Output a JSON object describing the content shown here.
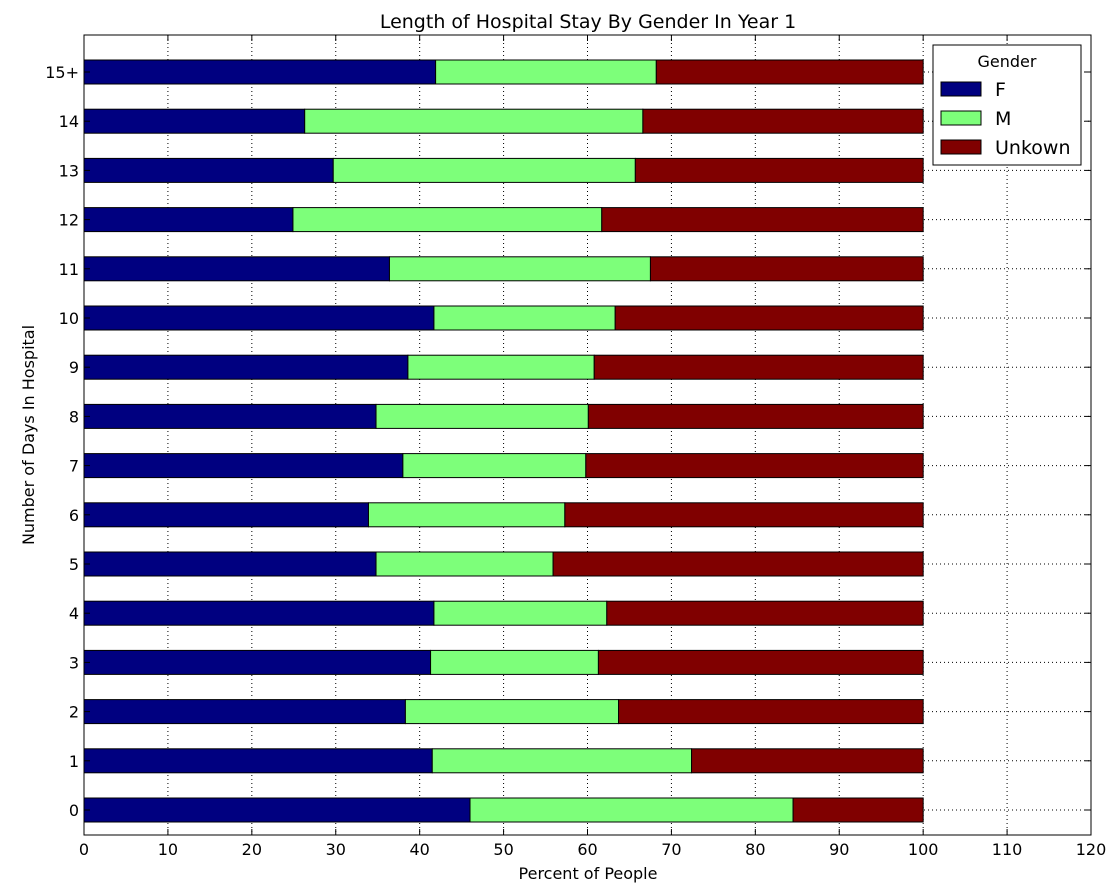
{
  "chart_data": {
    "type": "bar",
    "orientation": "horizontal",
    "stacked": true,
    "title": "Length of Hospital Stay By Gender In Year 1",
    "xlabel": "Percent of People",
    "ylabel": "Number of Days In Hospital",
    "xlim": [
      0,
      120
    ],
    "xticks": [
      "0",
      "10",
      "20",
      "30",
      "40",
      "50",
      "60",
      "70",
      "80",
      "90",
      "100",
      "110",
      "120"
    ],
    "categories": [
      "0",
      "1",
      "2",
      "3",
      "4",
      "5",
      "6",
      "7",
      "8",
      "9",
      "10",
      "11",
      "12",
      "13",
      "14",
      "15+"
    ],
    "grid": true,
    "legend": {
      "title": "Gender",
      "placement": "top-right"
    },
    "series": [
      {
        "name": "F",
        "color": "#000080",
        "values": [
          46.0,
          41.5,
          38.3,
          41.3,
          41.7,
          34.8,
          33.9,
          38.0,
          34.8,
          38.6,
          41.7,
          36.4,
          24.9,
          29.7,
          26.3,
          41.9
        ]
      },
      {
        "name": "M",
        "color": "#7dff7a",
        "values": [
          38.5,
          30.9,
          25.4,
          20.0,
          20.6,
          21.1,
          23.4,
          21.8,
          25.3,
          22.2,
          21.6,
          31.1,
          36.8,
          36.0,
          40.3,
          26.3
        ]
      },
      {
        "name": "Unkown",
        "color": "#800000",
        "values": [
          15.5,
          27.6,
          36.3,
          38.7,
          37.7,
          44.1,
          42.7,
          40.2,
          39.9,
          39.2,
          36.7,
          32.5,
          38.3,
          34.3,
          33.4,
          31.8
        ]
      }
    ]
  }
}
